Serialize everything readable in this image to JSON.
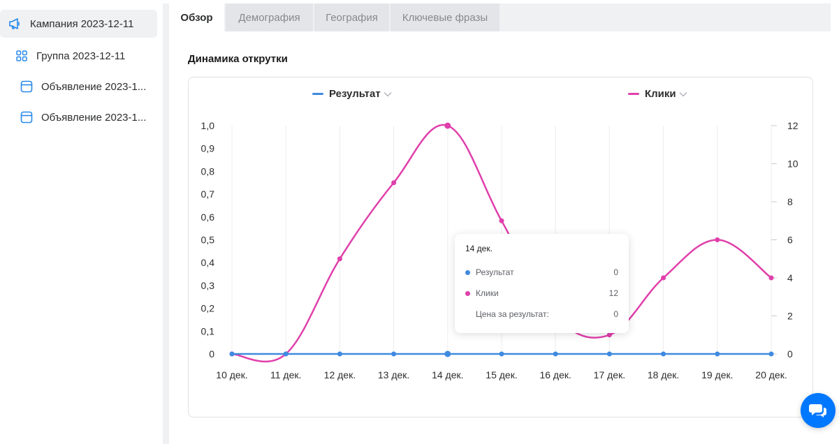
{
  "sidebar": {
    "items": [
      {
        "label": "Кампания 2023-12-11",
        "icon": "megaphone-icon",
        "active": true
      },
      {
        "label": "Группа 2023-12-11",
        "icon": "grid-icon",
        "active": false
      },
      {
        "label": "Объявление 2023-1...",
        "icon": "ad-icon",
        "active": false
      },
      {
        "label": "Объявление 2023-1...",
        "icon": "ad-icon",
        "active": false
      }
    ]
  },
  "tabs": [
    {
      "label": "Обзор",
      "active": true
    },
    {
      "label": "Демография",
      "active": false
    },
    {
      "label": "География",
      "active": false
    },
    {
      "label": "Ключевые фразы",
      "active": false
    }
  ],
  "card": {
    "title": "Динамика открутки"
  },
  "legend": {
    "left": {
      "label": "Результат",
      "chevron": "chevron-down-icon"
    },
    "right": {
      "label": "Клики",
      "chevron": "chevron-down-icon"
    }
  },
  "tooltip": {
    "title": "14 дек.",
    "rows": [
      {
        "label": "Результат",
        "value": "0"
      },
      {
        "label": "Клики",
        "value": "12"
      },
      {
        "label": "Цена за результат:",
        "value": "0"
      }
    ]
  },
  "colors": {
    "result": "#3f8ae0",
    "clicks": "#e03fab",
    "accent": "#0077ff"
  },
  "chart_data": {
    "type": "line",
    "x": [
      "10 дек.",
      "11 дек.",
      "12 дек.",
      "13 дек.",
      "14 дек.",
      "15 дек.",
      "16 дек.",
      "17 дек.",
      "18 дек.",
      "19 дек.",
      "20 дек."
    ],
    "series": [
      {
        "name": "Результат",
        "axis": "left",
        "color": "#3f8ae0",
        "values": [
          0,
          0,
          0,
          0,
          0,
          0,
          0,
          0,
          0,
          0,
          0
        ]
      },
      {
        "name": "Клики",
        "axis": "right",
        "color": "#e03fab",
        "values": [
          0,
          0,
          5,
          9,
          12,
          7,
          2,
          1,
          4,
          6,
          4
        ]
      }
    ],
    "left_axis": {
      "ticks": [
        "0",
        "0,1",
        "0,2",
        "0,3",
        "0,4",
        "0,5",
        "0,6",
        "0,7",
        "0,8",
        "0,9",
        "1,0"
      ],
      "ylim": [
        0,
        1
      ]
    },
    "right_axis": {
      "ticks": [
        "0",
        "2",
        "4",
        "6",
        "8",
        "10",
        "12"
      ],
      "ylim": [
        0,
        12
      ]
    },
    "grid": "vertical"
  }
}
